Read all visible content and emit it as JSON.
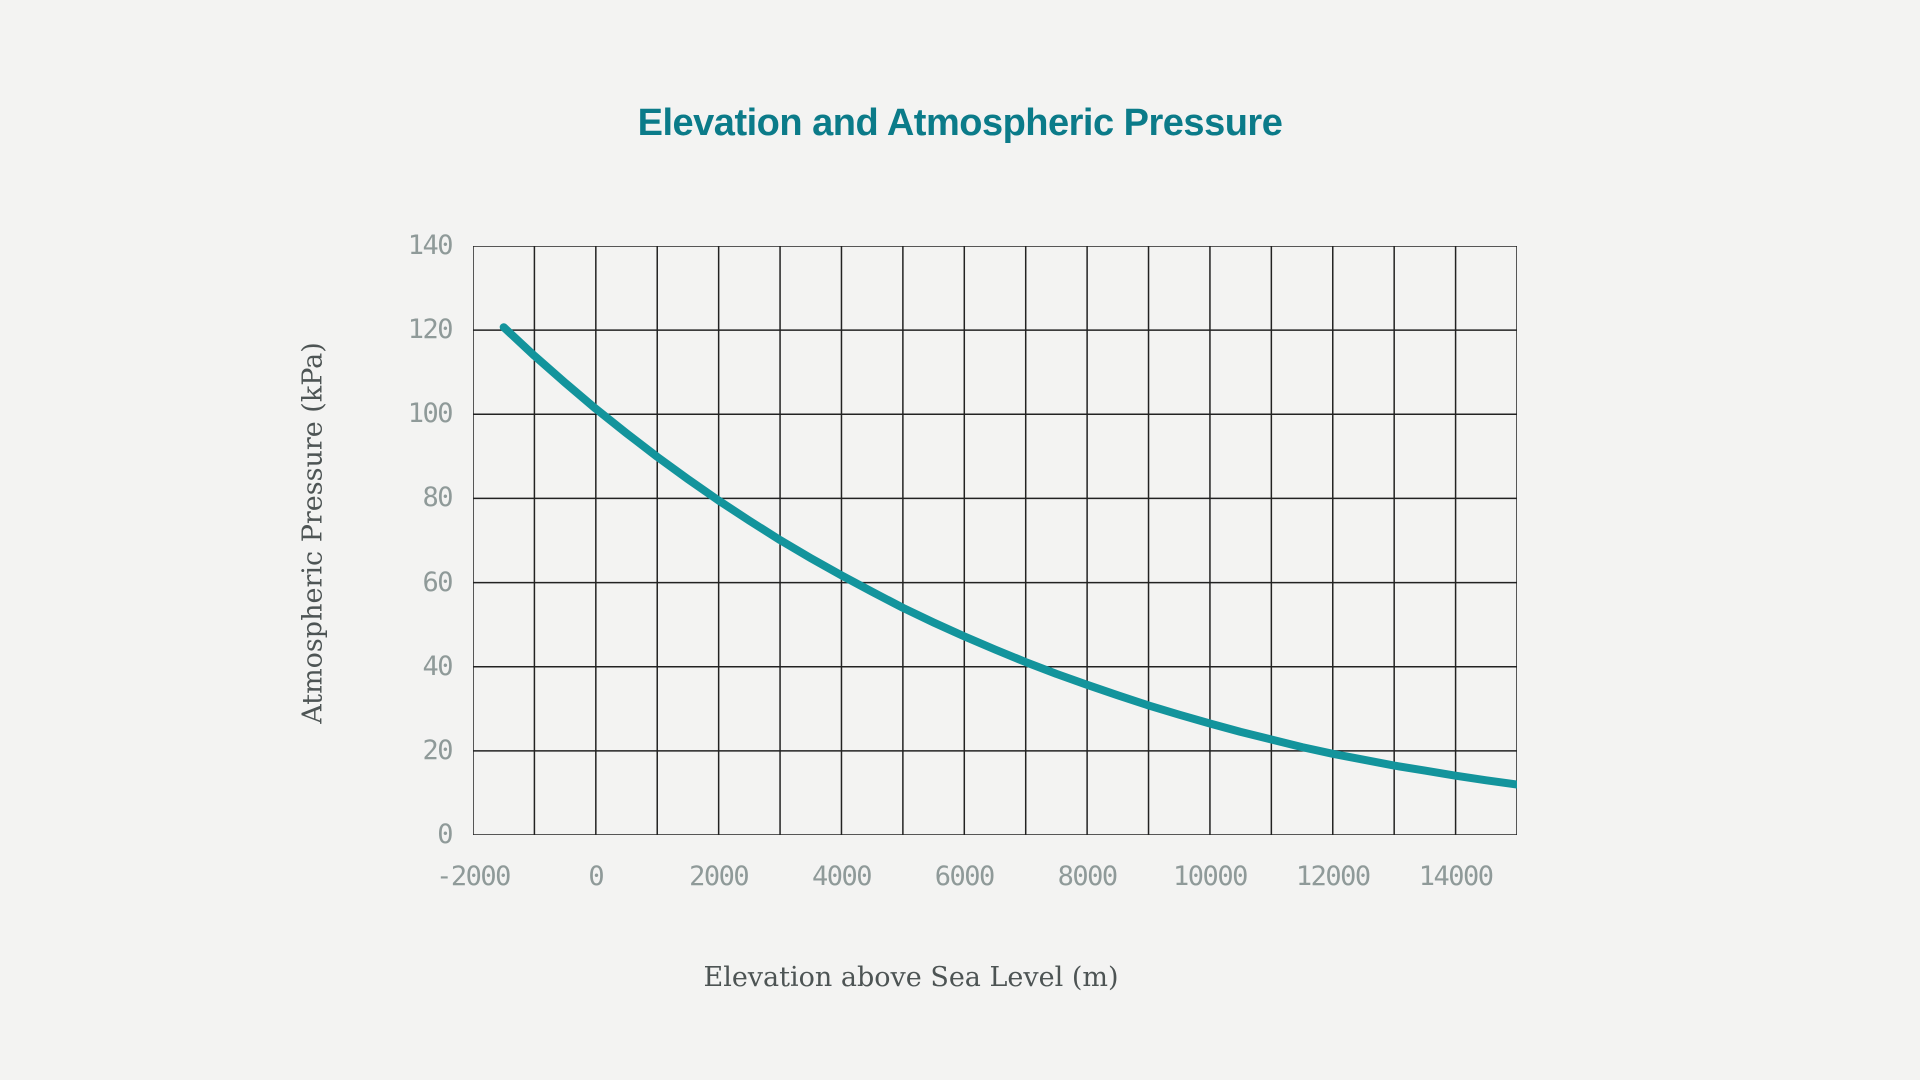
{
  "colors": {
    "background": "#f3f3f2",
    "title": "#0b7b89",
    "curve": "#13949c",
    "grid": "#222222",
    "tick_label": "#8f9a99",
    "axis_label": "#4d5454"
  },
  "chart_data": {
    "type": "line",
    "title": "Elevation and Atmospheric Pressure",
    "xlabel": "Elevation above Sea Level (m)",
    "ylabel": "Atmospheric Pressure (kPa)",
    "xlim": [
      -2000,
      15000
    ],
    "ylim": [
      0,
      140
    ],
    "x_grid_step": 1000,
    "y_grid_step": 20,
    "x_ticks": [
      "-2000",
      "0",
      "2000",
      "4000",
      "6000",
      "8000",
      "10000",
      "12000",
      "14000"
    ],
    "y_ticks": [
      "0",
      "20",
      "40",
      "60",
      "80",
      "100",
      "120",
      "140"
    ],
    "grid": true,
    "legend": false,
    "series": [
      {
        "name": "Atmospheric Pressure",
        "points": [
          [
            -1500,
            120.7
          ],
          [
            -1000,
            113.9
          ],
          [
            -500,
            107.5
          ],
          [
            0,
            101.3
          ],
          [
            500,
            95.5
          ],
          [
            1000,
            89.9
          ],
          [
            1500,
            84.6
          ],
          [
            2000,
            79.5
          ],
          [
            2500,
            74.7
          ],
          [
            3000,
            70.1
          ],
          [
            3500,
            65.8
          ],
          [
            4000,
            61.7
          ],
          [
            4500,
            57.8
          ],
          [
            5000,
            54.0
          ],
          [
            5500,
            50.5
          ],
          [
            6000,
            47.2
          ],
          [
            6500,
            44.1
          ],
          [
            7000,
            41.1
          ],
          [
            7500,
            38.3
          ],
          [
            8000,
            35.7
          ],
          [
            8500,
            33.2
          ],
          [
            9000,
            30.8
          ],
          [
            9500,
            28.6
          ],
          [
            10000,
            26.5
          ],
          [
            10500,
            24.5
          ],
          [
            11000,
            22.7
          ],
          [
            11500,
            20.9
          ],
          [
            12000,
            19.3
          ],
          [
            12500,
            17.9
          ],
          [
            13000,
            16.5
          ],
          [
            13500,
            15.3
          ],
          [
            14000,
            14.1
          ],
          [
            14500,
            13.0
          ],
          [
            15000,
            12.0
          ]
        ]
      }
    ]
  }
}
